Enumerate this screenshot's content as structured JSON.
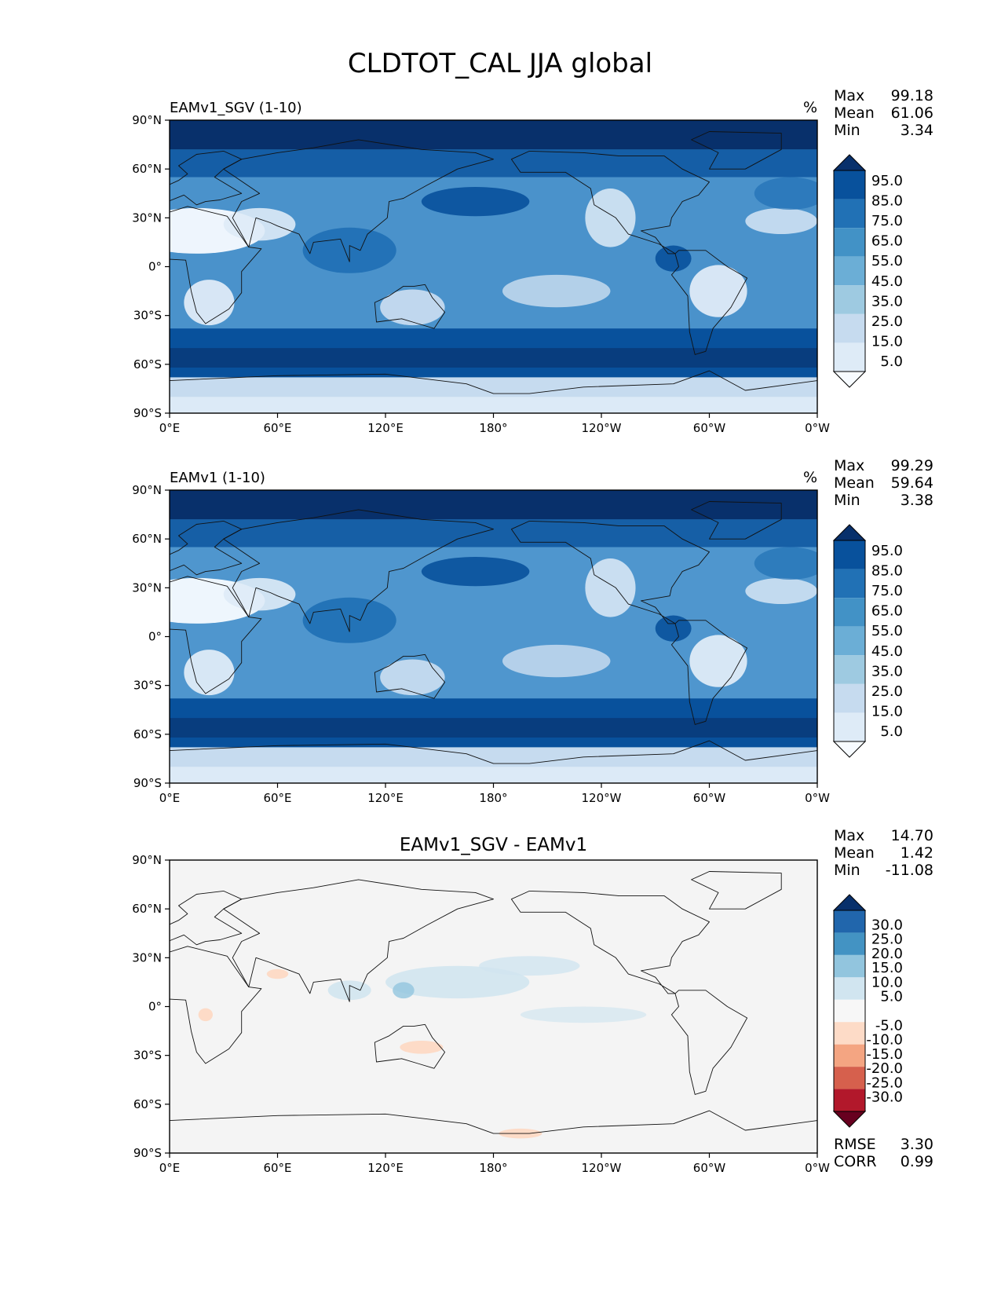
{
  "figure_title": "CLDTOT_CAL JJA global",
  "chart_data": [
    {
      "type": "heatmap",
      "title": "EAMv1_SGV (1-10)",
      "units": "%",
      "stats": [
        {
          "label": "Max",
          "value": "99.18"
        },
        {
          "label": "Mean",
          "value": "61.06"
        },
        {
          "label": "Min",
          "value": "3.34"
        }
      ],
      "x_ticks": [
        "0°E",
        "60°E",
        "120°E",
        "180°",
        "120°W",
        "60°W",
        "0°W"
      ],
      "x_tick_values": [
        0,
        60,
        120,
        180,
        240,
        300,
        360
      ],
      "y_ticks": [
        "90°N",
        "60°N",
        "30°N",
        "0°",
        "30°S",
        "60°S",
        "90°S"
      ],
      "y_tick_values": [
        90,
        60,
        30,
        0,
        -30,
        -60,
        -90
      ],
      "xlim": [
        0,
        360
      ],
      "ylim": [
        -90,
        90
      ],
      "colorbar_labels": [
        "95.0",
        "85.0",
        "75.0",
        "65.0",
        "55.0",
        "45.0",
        "35.0",
        "25.0",
        "15.0",
        "5.0"
      ],
      "colorbar_levels": [
        95,
        85,
        75,
        65,
        55,
        45,
        35,
        25,
        15,
        5
      ],
      "colors": [
        "#08306b",
        "#08519c",
        "#2171b5",
        "#4292c6",
        "#6baed6",
        "#9ecae1",
        "#c6dbef",
        "#deebf7",
        "#f7fbff"
      ],
      "colorbar_range": [
        0,
        100
      ],
      "background": "#4a92cb"
    },
    {
      "type": "heatmap",
      "title": "EAMv1 (1-10)",
      "units": "%",
      "stats": [
        {
          "label": "Max",
          "value": "99.29"
        },
        {
          "label": "Mean",
          "value": "59.64"
        },
        {
          "label": "Min",
          "value": "3.38"
        }
      ],
      "x_ticks": [
        "0°E",
        "60°E",
        "120°E",
        "180°",
        "120°W",
        "60°W",
        "0°W"
      ],
      "x_tick_values": [
        0,
        60,
        120,
        180,
        240,
        300,
        360
      ],
      "y_ticks": [
        "90°N",
        "60°N",
        "30°N",
        "0°",
        "30°S",
        "60°S",
        "90°S"
      ],
      "y_tick_values": [
        90,
        60,
        30,
        0,
        -30,
        -60,
        -90
      ],
      "xlim": [
        0,
        360
      ],
      "ylim": [
        -90,
        90
      ],
      "colorbar_labels": [
        "95.0",
        "85.0",
        "75.0",
        "65.0",
        "55.0",
        "45.0",
        "35.0",
        "25.0",
        "15.0",
        "5.0"
      ],
      "colorbar_levels": [
        95,
        85,
        75,
        65,
        55,
        45,
        35,
        25,
        15,
        5
      ],
      "colors": [
        "#08306b",
        "#08519c",
        "#2171b5",
        "#4292c6",
        "#6baed6",
        "#9ecae1",
        "#c6dbef",
        "#deebf7",
        "#f7fbff"
      ],
      "colorbar_range": [
        0,
        100
      ],
      "background": "#4f96ce"
    },
    {
      "type": "heatmap",
      "title": "EAMv1_SGV - EAMv1",
      "units": "",
      "stats": [
        {
          "label": "Max",
          "value": "14.70"
        },
        {
          "label": "Mean",
          "value": "1.42"
        },
        {
          "label": "Min",
          "value": "-11.08"
        }
      ],
      "x_ticks": [
        "0°E",
        "60°E",
        "120°E",
        "180°",
        "120°W",
        "60°W",
        "0°W"
      ],
      "x_tick_values": [
        0,
        60,
        120,
        180,
        240,
        300,
        360
      ],
      "y_ticks": [
        "90°N",
        "60°N",
        "30°N",
        "0°",
        "30°S",
        "60°S",
        "90°S"
      ],
      "y_tick_values": [
        90,
        60,
        30,
        0,
        -30,
        -60,
        -90
      ],
      "xlim": [
        0,
        360
      ],
      "ylim": [
        -90,
        90
      ],
      "colorbar_labels": [
        "30.0",
        "25.0",
        "20.0",
        "15.0",
        "10.0",
        "5.0",
        "-5.0",
        "-10.0",
        "-15.0",
        "-20.0",
        "-25.0",
        "-30.0"
      ],
      "colorbar_levels": [
        30,
        25,
        20,
        15,
        10,
        5,
        -5,
        -10,
        -15,
        -20,
        -25,
        -30
      ],
      "colors": [
        "#08306b",
        "#2166ac",
        "#4393c3",
        "#92c5de",
        "#d1e5f0",
        "#f7f7f7",
        "#fddbc7",
        "#f4a582",
        "#d6604d",
        "#b2182b",
        "#67001f"
      ],
      "colorbar_range": [
        -35,
        35
      ],
      "background": "#f4f4f4",
      "metrics": [
        {
          "label": "RMSE",
          "value": "3.30"
        },
        {
          "label": "CORR",
          "value": "0.99"
        }
      ]
    }
  ]
}
